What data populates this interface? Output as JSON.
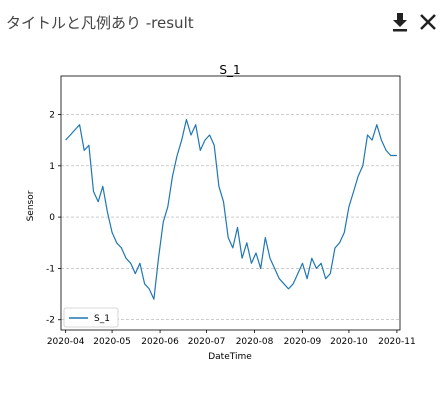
{
  "window": {
    "title": "タイトルと凡例あり -result",
    "download_icon": "download-icon",
    "close_icon": "close-icon"
  },
  "chart_data": {
    "type": "line",
    "title": "S_1",
    "xlabel": "DateTime",
    "ylabel": "Sensor",
    "xlim": [
      "2020-03-29",
      "2020-11-03"
    ],
    "ylim": [
      -2.2,
      2.75
    ],
    "grid": "y-dashed",
    "legend_position": "lower-left",
    "x_tick_labels": [
      "2020-04",
      "2020-05",
      "2020-06",
      "2020-07",
      "2020-08",
      "2020-09",
      "2020-10",
      "2020-11"
    ],
    "y_ticks": [
      -2,
      -1,
      0,
      1,
      2
    ],
    "colors": {
      "series": "#1f77b4",
      "grid": "#b0b0b0"
    },
    "series": [
      {
        "name": "S_1",
        "x": [
          "2020-04-01",
          "2020-04-04",
          "2020-04-07",
          "2020-04-10",
          "2020-04-13",
          "2020-04-16",
          "2020-04-19",
          "2020-04-22",
          "2020-04-25",
          "2020-04-28",
          "2020-05-01",
          "2020-05-04",
          "2020-05-07",
          "2020-05-10",
          "2020-05-13",
          "2020-05-16",
          "2020-05-19",
          "2020-05-22",
          "2020-05-25",
          "2020-05-28",
          "2020-05-31",
          "2020-06-03",
          "2020-06-06",
          "2020-06-09",
          "2020-06-12",
          "2020-06-15",
          "2020-06-18",
          "2020-06-21",
          "2020-06-24",
          "2020-06-27",
          "2020-06-30",
          "2020-07-03",
          "2020-07-06",
          "2020-07-09",
          "2020-07-12",
          "2020-07-15",
          "2020-07-18",
          "2020-07-21",
          "2020-07-24",
          "2020-07-27",
          "2020-07-30",
          "2020-08-02",
          "2020-08-05",
          "2020-08-08",
          "2020-08-11",
          "2020-08-14",
          "2020-08-17",
          "2020-08-20",
          "2020-08-23",
          "2020-08-26",
          "2020-08-29",
          "2020-09-01",
          "2020-09-04",
          "2020-09-07",
          "2020-09-10",
          "2020-09-13",
          "2020-09-16",
          "2020-09-19",
          "2020-09-22",
          "2020-09-25",
          "2020-09-28",
          "2020-10-01",
          "2020-10-04",
          "2020-10-07",
          "2020-10-10",
          "2020-10-13",
          "2020-10-16",
          "2020-10-19",
          "2020-10-22",
          "2020-10-25",
          "2020-10-28",
          "2020-11-01"
        ],
        "values": [
          1.5,
          1.6,
          1.7,
          1.8,
          1.3,
          1.4,
          0.5,
          0.3,
          0.6,
          0.1,
          -0.3,
          -0.5,
          -0.6,
          -0.8,
          -0.9,
          -1.1,
          -0.9,
          -1.3,
          -1.4,
          -1.6,
          -0.8,
          -0.1,
          0.2,
          0.8,
          1.2,
          1.5,
          1.9,
          1.6,
          1.8,
          1.3,
          1.5,
          1.6,
          1.4,
          0.6,
          0.3,
          -0.4,
          -0.6,
          -0.2,
          -0.8,
          -0.5,
          -0.9,
          -0.7,
          -1.0,
          -0.4,
          -0.8,
          -1.0,
          -1.2,
          -1.3,
          -1.4,
          -1.3,
          -1.1,
          -0.9,
          -1.2,
          -0.8,
          -1.0,
          -0.9,
          -1.2,
          -1.1,
          -0.6,
          -0.5,
          -0.3,
          0.2,
          0.5,
          0.8,
          1.0,
          1.6,
          1.5,
          1.8,
          1.5,
          1.3,
          1.2,
          1.2
        ]
      }
    ]
  }
}
